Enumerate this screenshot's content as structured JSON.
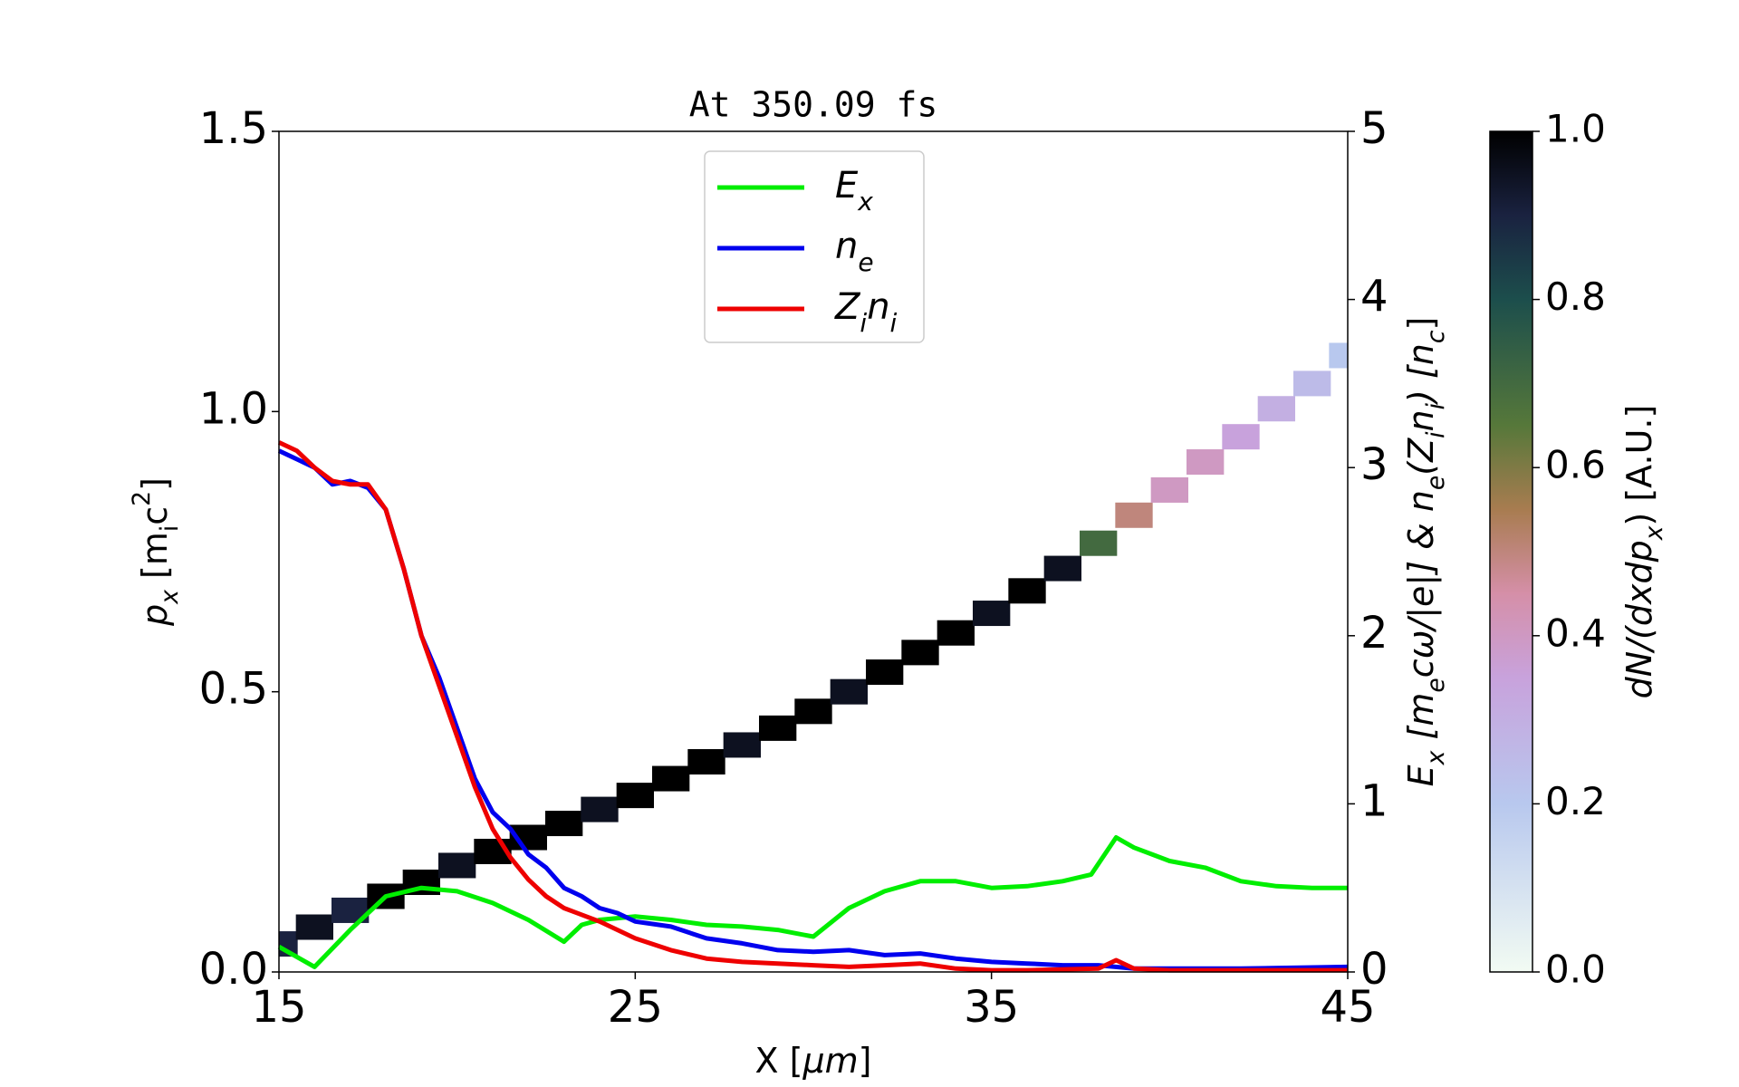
{
  "chart_data": {
    "type": "line",
    "title": "At 350.09 fs",
    "xlabel": [
      {
        "text": "X ["
      },
      {
        "text": "μm",
        "italic": true
      },
      {
        "text": "]"
      }
    ],
    "ylabel": [
      {
        "text": "p",
        "italic": true
      },
      {
        "text": "x",
        "italic": true,
        "sub": true
      },
      {
        "text": " [m"
      },
      {
        "text": "i",
        "sub": true
      },
      {
        "text": "c"
      },
      {
        "text": "2",
        "sup": true
      },
      {
        "text": "]"
      }
    ],
    "y2label": [
      {
        "text": "E",
        "italic": true
      },
      {
        "text": "x",
        "italic": true,
        "sub": true
      },
      {
        "text": " [m",
        "italic": true
      },
      {
        "text": "e",
        "italic": true,
        "sub": true
      },
      {
        "text": "cω/|e|]  &  n",
        "italic": true
      },
      {
        "text": "e",
        "italic": true,
        "sub": true
      },
      {
        "text": "(Z",
        "italic": true
      },
      {
        "text": "i",
        "italic": true,
        "sub": true
      },
      {
        "text": "n",
        "italic": true
      },
      {
        "text": "i",
        "italic": true,
        "sub": true
      },
      {
        "text": ")  [n",
        "italic": true
      },
      {
        "text": "c",
        "italic": true,
        "sub": true
      },
      {
        "text": "]"
      }
    ],
    "xlim": [
      15,
      45
    ],
    "xticks": [
      15,
      25,
      35,
      45
    ],
    "ylim": [
      0,
      1.5
    ],
    "yticks": [
      {
        "value": 0,
        "label": "0.0"
      },
      {
        "value": 0.5,
        "label": "0.5"
      },
      {
        "value": 1,
        "label": "1.0"
      },
      {
        "value": 1.5,
        "label": "1.5"
      }
    ],
    "y2lim": [
      0,
      5
    ],
    "y2ticks": [
      0,
      1,
      2,
      3,
      4,
      5
    ],
    "y2color": "#ff0000",
    "legend": "upper center",
    "series": [
      {
        "name": [
          {
            "text": "E",
            "italic": true
          },
          {
            "text": "x",
            "italic": true,
            "sub": true
          }
        ],
        "color": "#00ee00",
        "axis": "y2",
        "x": [
          15,
          16,
          17,
          18,
          19,
          20,
          21,
          22,
          23,
          23.5,
          24,
          25,
          26,
          27,
          28,
          29,
          30,
          31,
          32,
          33,
          34,
          35,
          36,
          37,
          37.8,
          38.5,
          39,
          40,
          41,
          42,
          43,
          44,
          45
        ],
        "values": [
          0.15,
          0.03,
          0.25,
          0.45,
          0.5,
          0.48,
          0.41,
          0.31,
          0.18,
          0.28,
          0.31,
          0.33,
          0.31,
          0.28,
          0.27,
          0.25,
          0.21,
          0.38,
          0.48,
          0.54,
          0.54,
          0.5,
          0.51,
          0.54,
          0.58,
          0.8,
          0.74,
          0.66,
          0.62,
          0.54,
          0.51,
          0.5,
          0.5
        ]
      },
      {
        "name": [
          {
            "text": "n",
            "italic": true
          },
          {
            "text": "e",
            "italic": true,
            "sub": true
          }
        ],
        "color": "#0000ee",
        "axis": "y2",
        "x": [
          15,
          15.5,
          16,
          16.5,
          17,
          17.5,
          18,
          18.5,
          19,
          19.5,
          20,
          20.5,
          21,
          21.5,
          22,
          22.5,
          23,
          23.5,
          24,
          24.5,
          25,
          26,
          27,
          28,
          29,
          30,
          31,
          32,
          33,
          34,
          35,
          36,
          37,
          38,
          39,
          40,
          42,
          45
        ],
        "values": [
          3.1,
          3.05,
          3.0,
          2.9,
          2.92,
          2.88,
          2.75,
          2.4,
          2.0,
          1.75,
          1.45,
          1.15,
          0.95,
          0.85,
          0.7,
          0.62,
          0.5,
          0.45,
          0.38,
          0.35,
          0.3,
          0.27,
          0.2,
          0.17,
          0.13,
          0.12,
          0.13,
          0.1,
          0.11,
          0.08,
          0.06,
          0.05,
          0.04,
          0.04,
          0.02,
          0.02,
          0.02,
          0.03
        ]
      },
      {
        "name": [
          {
            "text": "Z",
            "italic": true
          },
          {
            "text": "i",
            "italic": true,
            "sub": true
          },
          {
            "text": "n",
            "italic": true
          },
          {
            "text": "i",
            "italic": true,
            "sub": true
          }
        ],
        "color": "#ee0000",
        "axis": "y2",
        "x": [
          15,
          15.5,
          16,
          16.5,
          17,
          17.5,
          18,
          18.5,
          19,
          19.5,
          20,
          20.5,
          21,
          21.5,
          22,
          22.5,
          23,
          24,
          25,
          26,
          27,
          28,
          29,
          30,
          31,
          32,
          33,
          34,
          35,
          36,
          38,
          38.5,
          39,
          40,
          45
        ],
        "values": [
          3.15,
          3.1,
          3.0,
          2.92,
          2.9,
          2.9,
          2.75,
          2.4,
          2.0,
          1.7,
          1.4,
          1.1,
          0.85,
          0.68,
          0.55,
          0.45,
          0.38,
          0.3,
          0.2,
          0.13,
          0.08,
          0.06,
          0.05,
          0.04,
          0.03,
          0.04,
          0.05,
          0.02,
          0.01,
          0.01,
          0.02,
          0.07,
          0.02,
          0.01,
          0.01
        ]
      }
    ],
    "density": {
      "x": [
        15,
        16,
        17,
        18,
        19,
        20,
        21,
        22,
        23,
        24,
        25,
        26,
        27,
        28,
        29,
        30,
        31,
        32,
        33,
        34,
        35,
        36,
        37,
        38,
        39,
        40,
        41,
        42,
        43,
        44,
        45
      ],
      "values": [
        0.05,
        0.08,
        0.11,
        0.135,
        0.16,
        0.19,
        0.215,
        0.24,
        0.265,
        0.29,
        0.315,
        0.345,
        0.375,
        0.405,
        0.435,
        0.465,
        0.5,
        0.535,
        0.57,
        0.605,
        0.64,
        0.68,
        0.72,
        0.765,
        0.815,
        0.86,
        0.91,
        0.955,
        1.005,
        1.05,
        1.1
      ],
      "intensity": [
        0.9,
        0.95,
        0.9,
        1,
        1,
        0.95,
        1,
        1,
        1,
        0.95,
        1,
        1,
        1,
        0.95,
        1,
        1,
        0.95,
        1,
        1,
        1,
        0.95,
        1,
        0.95,
        0.7,
        0.5,
        0.4,
        0.4,
        0.35,
        0.3,
        0.25,
        0.2
      ],
      "clim": [
        0,
        1
      ],
      "cticks": [
        {
          "value": 0,
          "label": "0.0"
        },
        {
          "value": 0.2,
          "label": "0.2"
        },
        {
          "value": 0.4,
          "label": "0.4"
        },
        {
          "value": 0.6,
          "label": "0.6"
        },
        {
          "value": 0.8,
          "label": "0.8"
        },
        {
          "value": 1,
          "label": "1.0"
        }
      ],
      "clabel": [
        {
          "text": "dN/(dxdp",
          "italic": true
        },
        {
          "text": "x",
          "italic": true,
          "sub": true
        },
        {
          "text": ")  [A.U.]"
        }
      ],
      "colormap": [
        [
          0,
          "#f2fbf3"
        ],
        [
          0.2,
          "#b8c8ee"
        ],
        [
          0.35,
          "#c8a2dc"
        ],
        [
          0.45,
          "#d58fa8"
        ],
        [
          0.55,
          "#a87c50"
        ],
        [
          0.65,
          "#56783a"
        ],
        [
          0.8,
          "#1c4e4c"
        ],
        [
          0.9,
          "#1a2240"
        ],
        [
          1,
          "#000000"
        ]
      ]
    }
  }
}
